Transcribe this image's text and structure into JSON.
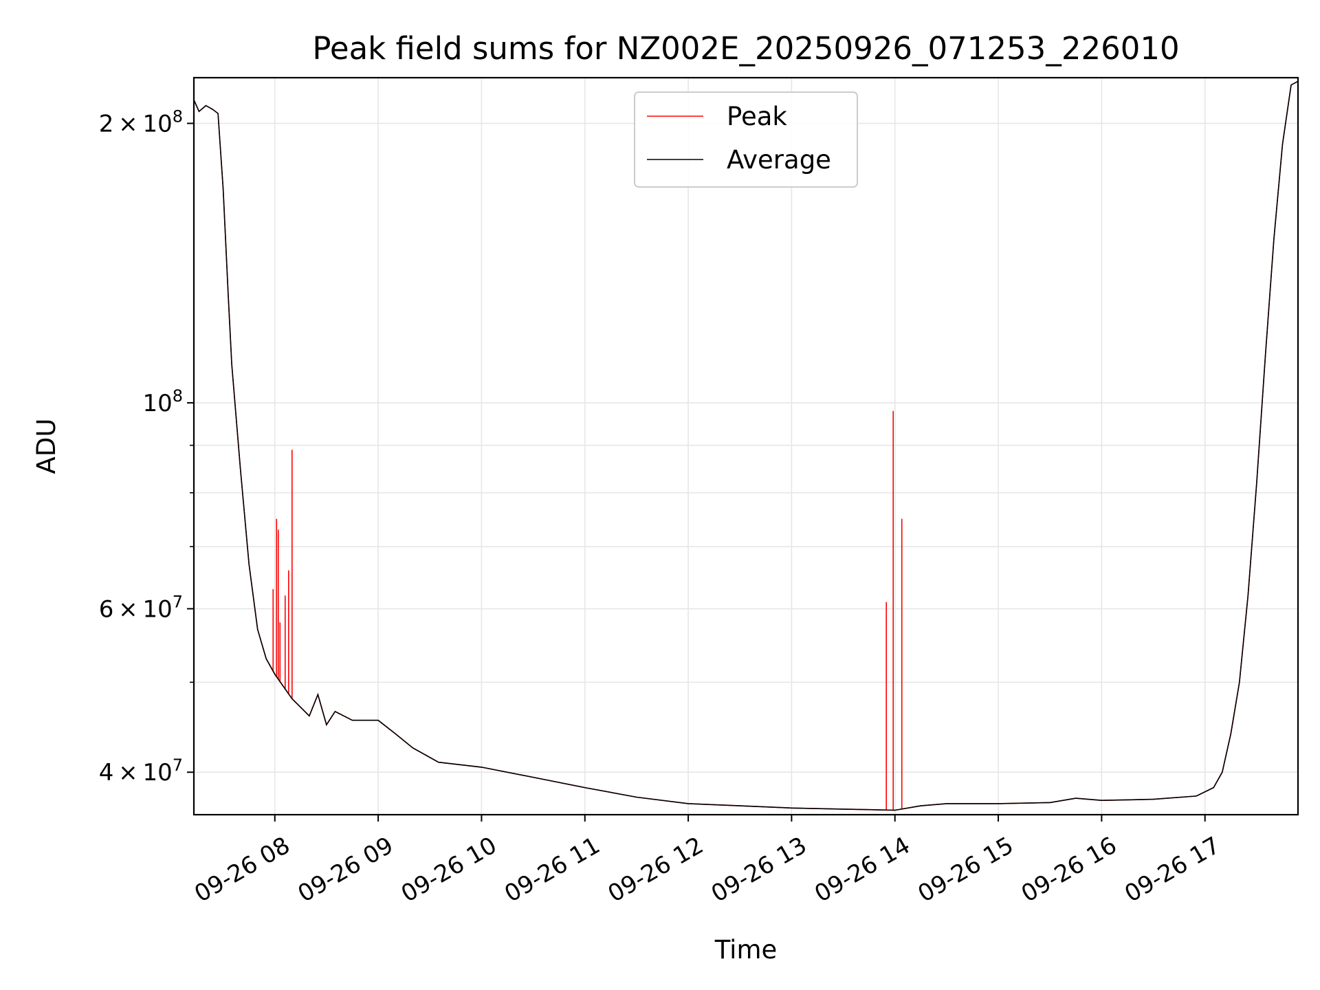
{
  "chart_data": {
    "type": "line",
    "title": "Peak field sums for NZ002E_20250926_071253_226010",
    "xlabel": "Time",
    "ylabel": "ADU",
    "y_scale": "log",
    "ylim": [
      36000000,
      224000000
    ],
    "xlim": [
      "2025-09-26 07:13",
      "2025-09-26 17:54"
    ],
    "x_ticks": [
      "09-26 08",
      "09-26 09",
      "09-26 10",
      "09-26 11",
      "09-26 12",
      "09-26 13",
      "09-26 14",
      "09-26 15",
      "09-26 16",
      "09-26 17"
    ],
    "y_ticks": [
      {
        "mantissa": "4",
        "exp": "7",
        "value": 40000000
      },
      {
        "mantissa": "6",
        "exp": "7",
        "value": 60000000
      },
      {
        "mantissa": "",
        "exp": "8",
        "value": 100000000
      },
      {
        "mantissa": "2",
        "exp": "8",
        "value": 200000000
      }
    ],
    "y_minor_ticks": [
      50000000,
      70000000,
      80000000,
      90000000
    ],
    "grid": true,
    "legend_position": "top-center",
    "series": [
      {
        "name": "Average",
        "color": "#000000",
        "x": [
          "2025-09-26 07:13",
          "2025-09-26 07:16",
          "2025-09-26 07:20",
          "2025-09-26 07:24",
          "2025-09-26 07:27",
          "2025-09-26 07:30",
          "2025-09-26 07:33",
          "2025-09-26 07:35",
          "2025-09-26 07:40",
          "2025-09-26 07:45",
          "2025-09-26 07:50",
          "2025-09-26 07:55",
          "2025-09-26 08:00",
          "2025-09-26 08:10",
          "2025-09-26 08:20",
          "2025-09-26 08:25",
          "2025-09-26 08:30",
          "2025-09-26 08:35",
          "2025-09-26 08:40",
          "2025-09-26 08:45",
          "2025-09-26 09:00",
          "2025-09-26 09:10",
          "2025-09-26 09:20",
          "2025-09-26 09:35",
          "2025-09-26 10:00",
          "2025-09-26 10:30",
          "2025-09-26 11:00",
          "2025-09-26 11:30",
          "2025-09-26 12:00",
          "2025-09-26 12:30",
          "2025-09-26 13:00",
          "2025-09-26 13:30",
          "2025-09-26 14:00",
          "2025-09-26 14:15",
          "2025-09-26 14:30",
          "2025-09-26 15:00",
          "2025-09-26 15:30",
          "2025-09-26 15:45",
          "2025-09-26 16:00",
          "2025-09-26 16:30",
          "2025-09-26 16:55",
          "2025-09-26 17:05",
          "2025-09-26 17:10",
          "2025-09-26 17:15",
          "2025-09-26 17:20",
          "2025-09-26 17:25",
          "2025-09-26 17:30",
          "2025-09-26 17:35",
          "2025-09-26 17:40",
          "2025-09-26 17:45",
          "2025-09-26 17:50",
          "2025-09-26 17:54"
        ],
        "y": [
          212000000,
          206000000,
          209000000,
          207000000,
          205000000,
          170000000,
          130000000,
          110000000,
          85000000,
          67000000,
          57000000,
          53000000,
          51000000,
          48000000,
          46000000,
          48500000,
          45000000,
          46500000,
          46000000,
          45500000,
          45500000,
          44000000,
          42500000,
          41000000,
          40500000,
          39500000,
          38500000,
          37600000,
          37000000,
          36800000,
          36600000,
          36500000,
          36400000,
          36800000,
          37000000,
          37000000,
          37100000,
          37500000,
          37300000,
          37400000,
          37700000,
          38500000,
          40000000,
          44000000,
          50000000,
          62000000,
          82000000,
          112000000,
          150000000,
          190000000,
          220000000,
          222000000
        ]
      },
      {
        "name": "Peak",
        "color": "#ff0000",
        "spikes": [
          {
            "x": "2025-09-26 07:59",
            "y": 63000000
          },
          {
            "x": "2025-09-26 08:01",
            "y": 75000000
          },
          {
            "x": "2025-09-26 08:02",
            "y": 73000000
          },
          {
            "x": "2025-09-26 08:03",
            "y": 58000000
          },
          {
            "x": "2025-09-26 08:06",
            "y": 62000000
          },
          {
            "x": "2025-09-26 08:08",
            "y": 66000000
          },
          {
            "x": "2025-09-26 08:10",
            "y": 89000000
          },
          {
            "x": "2025-09-26 13:55",
            "y": 61000000
          },
          {
            "x": "2025-09-26 13:59",
            "y": 98000000
          },
          {
            "x": "2025-09-26 14:04",
            "y": 75000000
          }
        ]
      }
    ],
    "legend": [
      {
        "label": "Peak",
        "color": "#ff0000"
      },
      {
        "label": "Average",
        "color": "#000000"
      }
    ]
  }
}
